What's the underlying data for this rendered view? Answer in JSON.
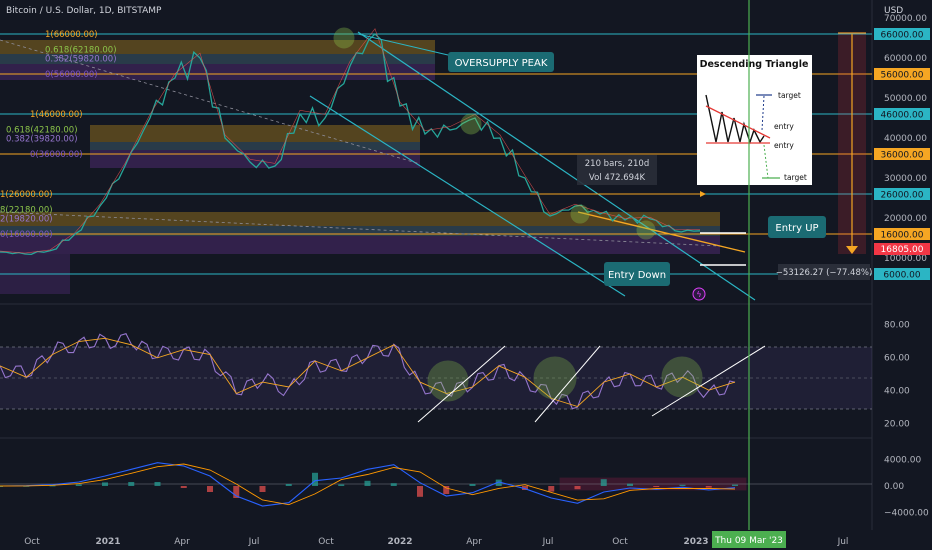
{
  "header": {
    "symbol_title": "Bitcoin / U.S. Dollar, 1D, BITSTAMP",
    "currency": "USD"
  },
  "colors": {
    "background": "#131722",
    "cyan": "#2bb5c4",
    "orange": "#f5a623",
    "price_badge": "#f23645",
    "entry_callout": "#1b6b73",
    "cursor_line": "#4caf50"
  },
  "chart_data": [
    {
      "type": "line",
      "name_hidden": "price",
      "ylim": [
        0,
        72000
      ],
      "y_ticks": [
        {
          "value": 70000,
          "label": "70000.00"
        },
        {
          "value": 60000,
          "label": "60000.00"
        },
        {
          "value": 50000,
          "label": "50000.00"
        },
        {
          "value": 40000,
          "label": "40000.00"
        },
        {
          "value": 30000,
          "label": "30000.00"
        },
        {
          "value": 20000,
          "label": "20000.00"
        },
        {
          "value": 10000,
          "label": "10000.00"
        }
      ],
      "x_ticks": [
        "Oct",
        "2021",
        "Apr",
        "Jul",
        "Oct",
        "2022",
        "Apr",
        "Jul",
        "Oct",
        "2023",
        "Apr",
        "Jul"
      ],
      "x": [
        "2020-08",
        "2020-09",
        "2020-10",
        "2020-11",
        "2020-12",
        "2021-01",
        "2021-02",
        "2021-03",
        "2021-04",
        "2021-05",
        "2021-06",
        "2021-07",
        "2021-08",
        "2021-09",
        "2021-10",
        "2021-11",
        "2021-12",
        "2022-01",
        "2022-02",
        "2022-03",
        "2022-04",
        "2022-05",
        "2022-06",
        "2022-07",
        "2022-08",
        "2022-09",
        "2022-10",
        "2022-11",
        "2022-12"
      ],
      "values": [
        11500,
        11000,
        11800,
        16000,
        23000,
        33000,
        45000,
        55000,
        60000,
        40000,
        34000,
        33000,
        46000,
        45000,
        58000,
        66000,
        48000,
        41000,
        42000,
        45000,
        40000,
        30000,
        20500,
        23000,
        21000,
        19500,
        19800,
        16800,
        16805
      ],
      "horizontal_levels": [
        {
          "value": 66000,
          "label": "66000.00",
          "color": "cyan"
        },
        {
          "value": 56000,
          "label": "56000.00",
          "color": "orange"
        },
        {
          "value": 46000,
          "label": "46000.00",
          "color": "cyan"
        },
        {
          "value": 36000,
          "label": "36000.00",
          "color": "orange"
        },
        {
          "value": 26000,
          "label": "26000.00",
          "color": "cyan"
        },
        {
          "value": 16000,
          "label": "16000.00",
          "color": "orange"
        },
        {
          "value": 6000,
          "label": "6000.00",
          "color": "cyan"
        }
      ],
      "current_price": {
        "value": 16805,
        "label": "16805.00"
      },
      "fib_labels": [
        {
          "text": "1(66000.00)",
          "value": 66000
        },
        {
          "text": "0.618(62180.00)",
          "value": 62180
        },
        {
          "text": "0.382(59820.00)",
          "value": 59820
        },
        {
          "text": "0(56000.00)",
          "value": 56000
        },
        {
          "text": "1(46000.00)",
          "value": 46000
        },
        {
          "text": "0.618(42180.00)",
          "value": 42180
        },
        {
          "text": "0.382(39820.00)",
          "value": 39820
        },
        {
          "text": "0(36000.00)",
          "value": 36000
        },
        {
          "text": "1(26000.00)",
          "value": 26000
        },
        {
          "text": "8(22180.00)",
          "value": 22180
        },
        {
          "text": "2(19820.00)",
          "value": 19820
        },
        {
          "text": "0(16000.00)",
          "value": 16000
        }
      ],
      "annotations": {
        "oversupply": "OVERSUPPLY PEAK",
        "entry_up": "Entry UP",
        "entry_down": "Entry Down",
        "bars_info": "210 bars, 210d",
        "vol_info": "Vol 472.694K",
        "measure": "−53126.27 (−77.48%)",
        "cursor_date": "Thu 09 Mar '23"
      },
      "inset": {
        "title": "Descending Triangle",
        "labels": [
          "target",
          "entry",
          "entry",
          "target"
        ]
      }
    },
    {
      "type": "line",
      "name_hidden": "rsi",
      "ylim": [
        15,
        85
      ],
      "y_ticks": [
        {
          "value": 80,
          "label": "80.00"
        },
        {
          "value": 60,
          "label": "60.00"
        },
        {
          "value": 40,
          "label": "40.00"
        },
        {
          "value": 20,
          "label": "20.00"
        }
      ],
      "values": [
        55,
        48,
        62,
        70,
        72,
        68,
        60,
        65,
        62,
        38,
        45,
        42,
        58,
        52,
        60,
        68,
        45,
        38,
        42,
        55,
        48,
        35,
        30,
        45,
        50,
        42,
        48,
        40,
        45
      ]
    },
    {
      "type": "area",
      "name_hidden": "macd",
      "ylim": [
        -6000,
        6000
      ],
      "y_ticks": [
        {
          "value": 4000,
          "label": "4000.00"
        },
        {
          "value": 0,
          "label": "0.00"
        },
        {
          "value": -4000,
          "label": "−4000.00"
        }
      ],
      "values": [
        0,
        50,
        200,
        600,
        1500,
        2500,
        3500,
        3000,
        1500,
        -1500,
        -3000,
        -2500,
        800,
        1200,
        2500,
        3200,
        500,
        -1500,
        -1000,
        600,
        -400,
        -1800,
        -2600,
        -900,
        -300,
        -500,
        -200,
        -600,
        -250
      ]
    }
  ]
}
